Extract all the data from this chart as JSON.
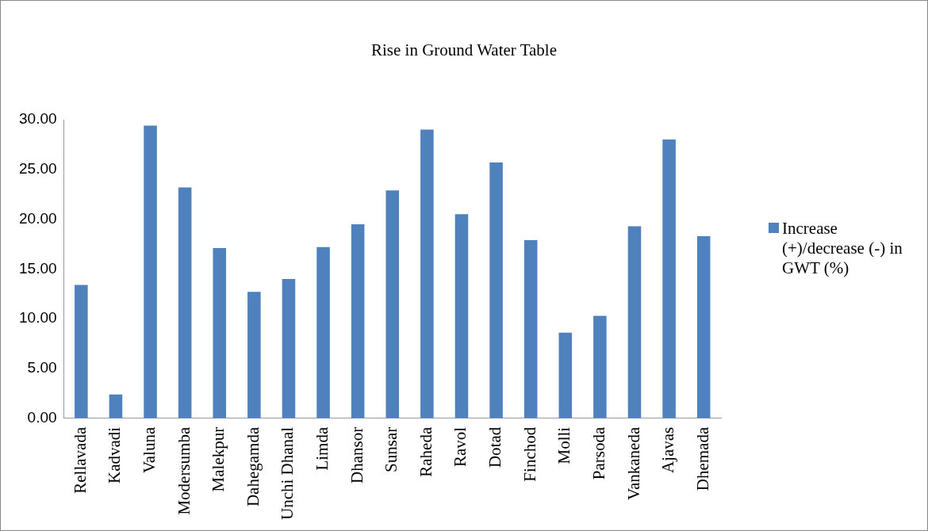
{
  "chart_data": {
    "type": "bar",
    "title": "Rise in Ground Water Table",
    "categories": [
      "Rellavada",
      "Kadvadi",
      "Valuna",
      "Modersumba",
      "Malekpur",
      "Dahegamda",
      "Unchi Dhanal",
      "Limda",
      "Dhansor",
      "Sunsar",
      "Raheda",
      "Ravol",
      "Dotad",
      "Finchod",
      "Molli",
      "Parsoda",
      "Vankaneda",
      "Ajavas",
      "Dhemada"
    ],
    "series": [
      {
        "name": "Increase (+)/decrease (-) in GWT (%)",
        "color": "#4f81bd",
        "values": [
          13.4,
          2.4,
          29.4,
          23.2,
          17.1,
          12.7,
          14.0,
          17.2,
          19.5,
          22.9,
          29.0,
          20.5,
          25.7,
          17.9,
          8.6,
          10.3,
          19.3,
          28.0,
          18.3
        ]
      }
    ],
    "ylim": [
      0,
      30
    ],
    "yticks": [
      {
        "value": 0,
        "label": "0.00"
      },
      {
        "value": 5,
        "label": "5.00"
      },
      {
        "value": 10,
        "label": "10.00"
      },
      {
        "value": 15,
        "label": "15.00"
      },
      {
        "value": 20,
        "label": "20.00"
      },
      {
        "value": 25,
        "label": "25.00"
      },
      {
        "value": 30,
        "label": "30.00"
      }
    ],
    "grid": false,
    "legend": "right"
  }
}
